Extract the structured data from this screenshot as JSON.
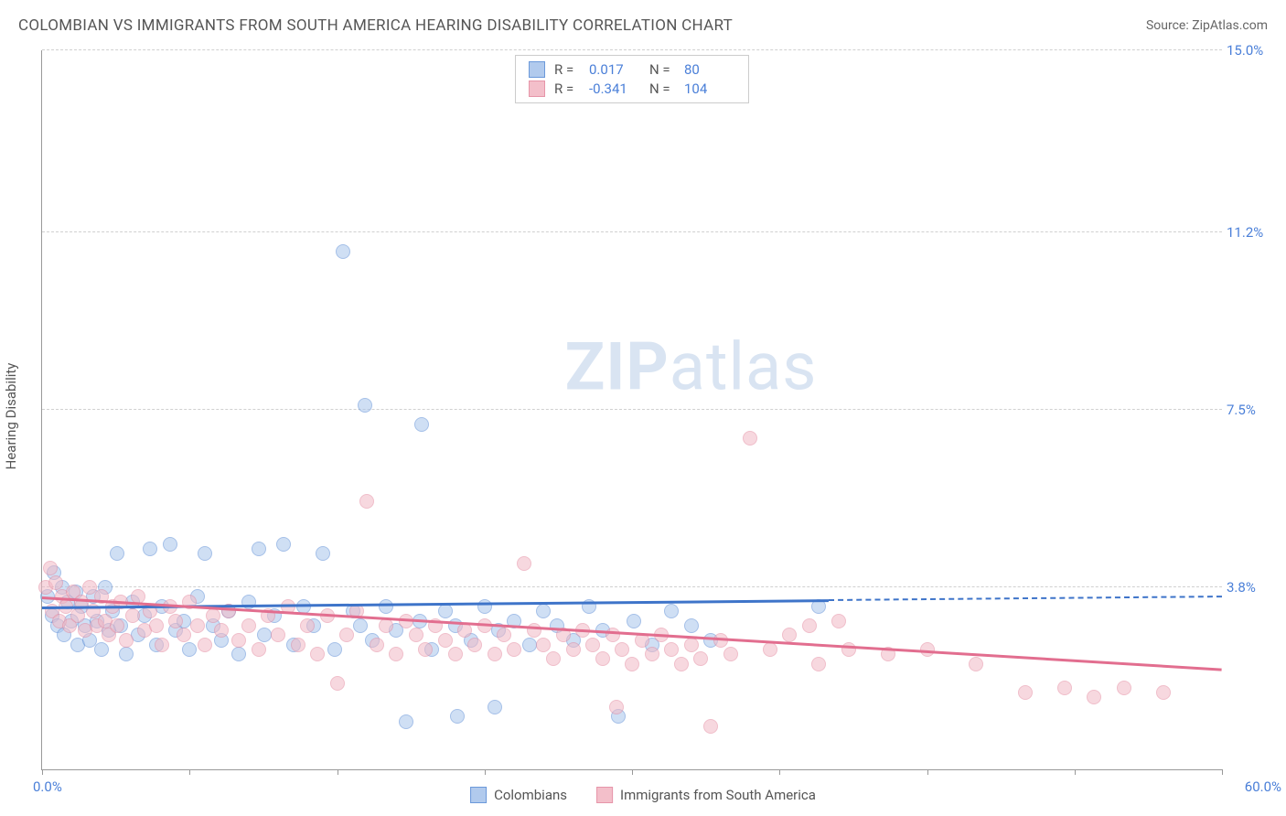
{
  "header": {
    "title": "COLOMBIAN VS IMMIGRANTS FROM SOUTH AMERICA HEARING DISABILITY CORRELATION CHART",
    "source_prefix": "Source: ",
    "source_link": "ZipAtlas.com"
  },
  "ylabel": "Hearing Disability",
  "watermark": {
    "bold": "ZIP",
    "rest": "atlas"
  },
  "chart": {
    "type": "scatter",
    "xlim": [
      0,
      60
    ],
    "ylim": [
      0,
      15
    ],
    "x_tick_step": 7.5,
    "x_min_label": "0.0%",
    "x_max_label": "60.0%",
    "y_grid": [
      {
        "v": 3.8,
        "label": "3.8%"
      },
      {
        "v": 7.5,
        "label": "7.5%"
      },
      {
        "v": 11.2,
        "label": "11.2%"
      },
      {
        "v": 15.0,
        "label": "15.0%"
      }
    ],
    "background_color": "#ffffff",
    "grid_color": "#d0d0d0",
    "axis_color": "#999999",
    "tick_label_color": "#4a7fd8",
    "series": [
      {
        "key": "colombians",
        "label": "Colombians",
        "R_label": "R =",
        "R": "0.017",
        "N_label": "N =",
        "N": "80",
        "fill": "#a9c5ec",
        "stroke": "#5c8ed6",
        "fill_opacity": 0.55,
        "trend_color": "#3e74c9",
        "trend": {
          "x1": 0,
          "y1": 3.4,
          "x2": 40,
          "y2": 3.55,
          "dash_to_x": 60
        },
        "marker_r": 8,
        "points": [
          [
            0.3,
            3.6
          ],
          [
            0.5,
            3.2
          ],
          [
            0.6,
            4.1
          ],
          [
            0.8,
            3.0
          ],
          [
            1.0,
            3.8
          ],
          [
            1.1,
            2.8
          ],
          [
            1.3,
            3.5
          ],
          [
            1.5,
            3.1
          ],
          [
            1.7,
            3.7
          ],
          [
            1.8,
            2.6
          ],
          [
            2.0,
            3.4
          ],
          [
            2.2,
            3.0
          ],
          [
            2.4,
            2.7
          ],
          [
            2.6,
            3.6
          ],
          [
            2.8,
            3.1
          ],
          [
            3.0,
            2.5
          ],
          [
            3.2,
            3.8
          ],
          [
            3.4,
            2.9
          ],
          [
            3.6,
            3.3
          ],
          [
            3.8,
            4.5
          ],
          [
            4.0,
            3.0
          ],
          [
            4.3,
            2.4
          ],
          [
            4.6,
            3.5
          ],
          [
            4.9,
            2.8
          ],
          [
            5.2,
            3.2
          ],
          [
            5.5,
            4.6
          ],
          [
            5.8,
            2.6
          ],
          [
            6.1,
            3.4
          ],
          [
            6.5,
            4.7
          ],
          [
            6.8,
            2.9
          ],
          [
            7.2,
            3.1
          ],
          [
            7.5,
            2.5
          ],
          [
            7.9,
            3.6
          ],
          [
            8.3,
            4.5
          ],
          [
            8.7,
            3.0
          ],
          [
            9.1,
            2.7
          ],
          [
            9.5,
            3.3
          ],
          [
            10.0,
            2.4
          ],
          [
            10.5,
            3.5
          ],
          [
            11.0,
            4.6
          ],
          [
            11.3,
            2.8
          ],
          [
            11.8,
            3.2
          ],
          [
            12.3,
            4.7
          ],
          [
            12.8,
            2.6
          ],
          [
            13.3,
            3.4
          ],
          [
            13.8,
            3.0
          ],
          [
            14.3,
            4.5
          ],
          [
            14.9,
            2.5
          ],
          [
            15.3,
            10.8
          ],
          [
            15.8,
            3.3
          ],
          [
            16.2,
            3.0
          ],
          [
            16.4,
            7.6
          ],
          [
            16.8,
            2.7
          ],
          [
            17.5,
            3.4
          ],
          [
            18.0,
            2.9
          ],
          [
            18.5,
            1.0
          ],
          [
            19.2,
            3.1
          ],
          [
            19.3,
            7.2
          ],
          [
            19.8,
            2.5
          ],
          [
            20.5,
            3.3
          ],
          [
            21.0,
            3.0
          ],
          [
            21.1,
            1.1
          ],
          [
            21.8,
            2.7
          ],
          [
            22.5,
            3.4
          ],
          [
            23.0,
            1.3
          ],
          [
            23.2,
            2.9
          ],
          [
            24.0,
            3.1
          ],
          [
            24.8,
            2.6
          ],
          [
            25.5,
            3.3
          ],
          [
            26.2,
            3.0
          ],
          [
            27.0,
            2.7
          ],
          [
            27.8,
            3.4
          ],
          [
            28.5,
            2.9
          ],
          [
            29.3,
            1.1
          ],
          [
            30.1,
            3.1
          ],
          [
            31.0,
            2.6
          ],
          [
            32.0,
            3.3
          ],
          [
            33.0,
            3.0
          ],
          [
            34.0,
            2.7
          ],
          [
            39.5,
            3.4
          ]
        ]
      },
      {
        "key": "immigrants",
        "label": "Immigrants from South America",
        "R_label": "R =",
        "R": "-0.341",
        "N_label": "N =",
        "N": "104",
        "fill": "#f2b9c5",
        "stroke": "#e48aa0",
        "fill_opacity": 0.55,
        "trend_color": "#e26e8f",
        "trend": {
          "x1": 0,
          "y1": 3.6,
          "x2": 60,
          "y2": 2.1
        },
        "marker_r": 8,
        "points": [
          [
            0.2,
            3.8
          ],
          [
            0.4,
            4.2
          ],
          [
            0.5,
            3.3
          ],
          [
            0.7,
            3.9
          ],
          [
            0.9,
            3.1
          ],
          [
            1.0,
            3.6
          ],
          [
            1.2,
            3.4
          ],
          [
            1.4,
            3.0
          ],
          [
            1.6,
            3.7
          ],
          [
            1.8,
            3.2
          ],
          [
            2.0,
            3.5
          ],
          [
            2.2,
            2.9
          ],
          [
            2.4,
            3.8
          ],
          [
            2.6,
            3.3
          ],
          [
            2.8,
            3.0
          ],
          [
            3.0,
            3.6
          ],
          [
            3.2,
            3.1
          ],
          [
            3.4,
            2.8
          ],
          [
            3.6,
            3.4
          ],
          [
            3.8,
            3.0
          ],
          [
            4.0,
            3.5
          ],
          [
            4.3,
            2.7
          ],
          [
            4.6,
            3.2
          ],
          [
            4.9,
            3.6
          ],
          [
            5.2,
            2.9
          ],
          [
            5.5,
            3.3
          ],
          [
            5.8,
            3.0
          ],
          [
            6.1,
            2.6
          ],
          [
            6.5,
            3.4
          ],
          [
            6.8,
            3.1
          ],
          [
            7.2,
            2.8
          ],
          [
            7.5,
            3.5
          ],
          [
            7.9,
            3.0
          ],
          [
            8.3,
            2.6
          ],
          [
            8.7,
            3.2
          ],
          [
            9.1,
            2.9
          ],
          [
            9.5,
            3.3
          ],
          [
            10.0,
            2.7
          ],
          [
            10.5,
            3.0
          ],
          [
            11.0,
            2.5
          ],
          [
            11.5,
            3.2
          ],
          [
            12.0,
            2.8
          ],
          [
            12.5,
            3.4
          ],
          [
            13.0,
            2.6
          ],
          [
            13.5,
            3.0
          ],
          [
            14.0,
            2.4
          ],
          [
            14.5,
            3.2
          ],
          [
            15.0,
            1.8
          ],
          [
            15.5,
            2.8
          ],
          [
            16.0,
            3.3
          ],
          [
            16.5,
            5.6
          ],
          [
            17.0,
            2.6
          ],
          [
            17.5,
            3.0
          ],
          [
            18.0,
            2.4
          ],
          [
            18.5,
            3.1
          ],
          [
            19.0,
            2.8
          ],
          [
            19.5,
            2.5
          ],
          [
            20.0,
            3.0
          ],
          [
            20.5,
            2.7
          ],
          [
            21.0,
            2.4
          ],
          [
            21.5,
            2.9
          ],
          [
            22.0,
            2.6
          ],
          [
            22.5,
            3.0
          ],
          [
            23.0,
            2.4
          ],
          [
            23.5,
            2.8
          ],
          [
            24.0,
            2.5
          ],
          [
            24.5,
            4.3
          ],
          [
            25.0,
            2.9
          ],
          [
            25.5,
            2.6
          ],
          [
            26.0,
            2.3
          ],
          [
            26.5,
            2.8
          ],
          [
            27.0,
            2.5
          ],
          [
            27.5,
            2.9
          ],
          [
            28.0,
            2.6
          ],
          [
            28.5,
            2.3
          ],
          [
            29.0,
            2.8
          ],
          [
            29.2,
            1.3
          ],
          [
            29.5,
            2.5
          ],
          [
            30.0,
            2.2
          ],
          [
            30.5,
            2.7
          ],
          [
            31.0,
            2.4
          ],
          [
            31.5,
            2.8
          ],
          [
            32.0,
            2.5
          ],
          [
            32.5,
            2.2
          ],
          [
            33.0,
            2.6
          ],
          [
            33.5,
            2.3
          ],
          [
            34.0,
            0.9
          ],
          [
            34.5,
            2.7
          ],
          [
            35.0,
            2.4
          ],
          [
            36.0,
            6.9
          ],
          [
            37.0,
            2.5
          ],
          [
            38.0,
            2.8
          ],
          [
            39.0,
            3.0
          ],
          [
            39.5,
            2.2
          ],
          [
            40.5,
            3.1
          ],
          [
            41.0,
            2.5
          ],
          [
            43.0,
            2.4
          ],
          [
            45.0,
            2.5
          ],
          [
            47.5,
            2.2
          ],
          [
            50.0,
            1.6
          ],
          [
            52.0,
            1.7
          ],
          [
            53.5,
            1.5
          ],
          [
            55.0,
            1.7
          ],
          [
            57.0,
            1.6
          ]
        ]
      }
    ]
  }
}
